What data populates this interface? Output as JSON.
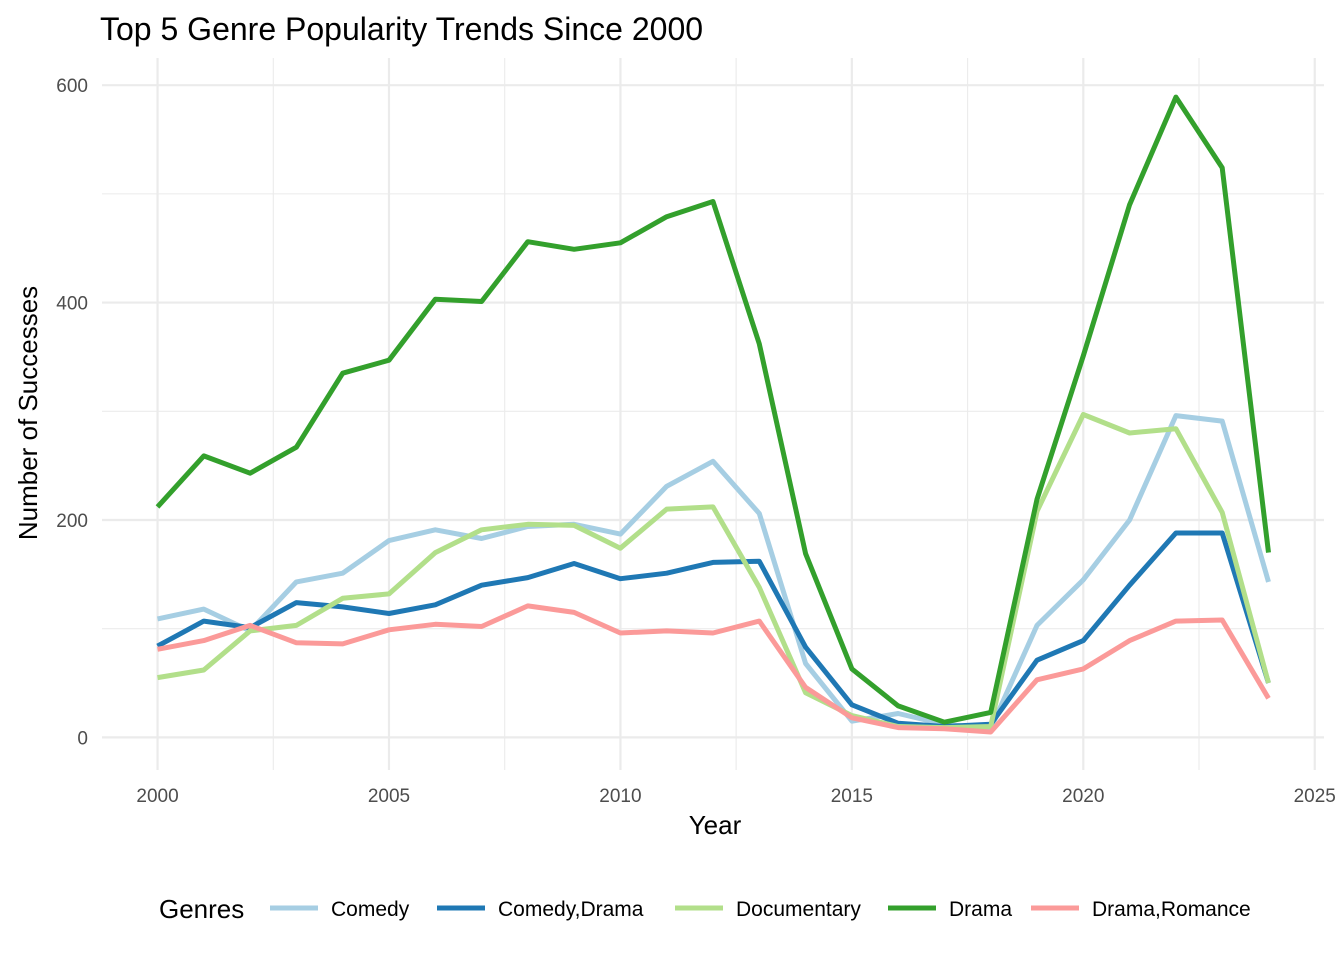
{
  "chart_data": {
    "type": "line",
    "title": "Top 5 Genre Popularity Trends Since 2000",
    "xlabel": "Year",
    "ylabel": "Number of Successes",
    "xlim": [
      1998.8,
      2025.2
    ],
    "ylim": [
      -30,
      625
    ],
    "x_ticks": [
      2000,
      2005,
      2010,
      2015,
      2020,
      2025
    ],
    "y_ticks": [
      0,
      200,
      400,
      600
    ],
    "grid": true,
    "legend_title": "Genres",
    "legend_position": "bottom",
    "x": [
      2000,
      2001,
      2002,
      2003,
      2004,
      2005,
      2006,
      2007,
      2008,
      2009,
      2010,
      2011,
      2012,
      2013,
      2014,
      2015,
      2016,
      2017,
      2018,
      2019,
      2020,
      2021,
      2022,
      2023,
      2024
    ],
    "series": [
      {
        "name": "Comedy",
        "color": "#a6cee3",
        "values": [
          109,
          118,
          98,
          143,
          151,
          181,
          191,
          183,
          194,
          196,
          187,
          231,
          254,
          206,
          68,
          15,
          22,
          12,
          8,
          103,
          145,
          200,
          296,
          291,
          143
        ]
      },
      {
        "name": "Comedy,Drama",
        "color": "#1f78b4",
        "values": [
          84,
          107,
          101,
          124,
          120,
          114,
          122,
          140,
          147,
          160,
          146,
          151,
          161,
          162,
          83,
          30,
          13,
          10,
          12,
          71,
          89,
          140,
          188,
          188,
          50
        ]
      },
      {
        "name": "Documentary",
        "color": "#b2df8a",
        "values": [
          55,
          62,
          98,
          103,
          128,
          132,
          170,
          191,
          196,
          195,
          174,
          210,
          212,
          138,
          41,
          20,
          10,
          9,
          10,
          208,
          297,
          280,
          284,
          207,
          50
        ]
      },
      {
        "name": "Drama",
        "color": "#33a02c",
        "values": [
          212,
          259,
          243,
          267,
          335,
          347,
          403,
          401,
          456,
          449,
          455,
          479,
          493,
          362,
          169,
          63,
          29,
          14,
          23,
          219,
          351,
          490,
          589,
          524,
          170
        ]
      },
      {
        "name": "Drama,Romance",
        "color": "#fb9a99",
        "values": [
          81,
          89,
          103,
          87,
          86,
          99,
          104,
          102,
          121,
          115,
          96,
          98,
          96,
          107,
          46,
          18,
          9,
          8,
          5,
          53,
          63,
          89,
          107,
          108,
          36
        ]
      }
    ]
  }
}
